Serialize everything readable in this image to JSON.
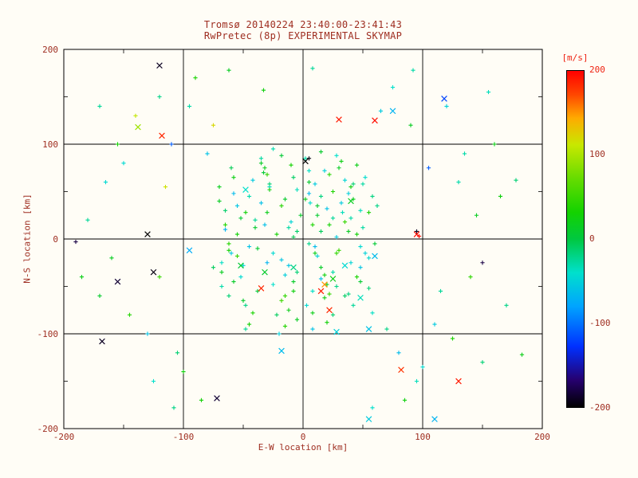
{
  "page": {
    "background": "#fffdf6",
    "text_color": "#9e2d20"
  },
  "title": {
    "line1": "Tromsø 20140224 23:40:00-23:41:43",
    "line2": "RwPretec (8p) EXPERIMENTAL SKYMAP"
  },
  "axes": {
    "xlabel": "E-W location [km]",
    "ylabel": "N-S location [km]",
    "xlim": [
      -200,
      200
    ],
    "ylim": [
      -200,
      200
    ],
    "xticks": [
      -200,
      -100,
      0,
      100,
      200
    ],
    "yticks": [
      -200,
      -100,
      0,
      100,
      200
    ],
    "grid_values": [
      -100,
      0,
      100
    ],
    "minor_ticks": [
      -150,
      -50,
      50,
      150
    ]
  },
  "colorbar": {
    "label": "[m/s]",
    "ticks": [
      200,
      100,
      0,
      -100,
      -200
    ],
    "max": 200,
    "min": -200,
    "top_tick_color": "#ee2211"
  },
  "chart_data": {
    "type": "scatter",
    "title": "Tromsø 20140224 23:40:00-23:41:43 / RwPretec (8p) EXPERIMENTAL SKYMAP",
    "xlabel": "E-W location [km]",
    "ylabel": "N-S location [km]",
    "xlim": [
      -200,
      200
    ],
    "ylim": [
      -200,
      200
    ],
    "grid": true,
    "legend": "colorbar right, velocity [m/s] from -200 (black) to 200 (red)",
    "vmin": -200,
    "vmax": 200,
    "colormap": [
      [
        0.0,
        "#000000"
      ],
      [
        0.08,
        "#26006e"
      ],
      [
        0.18,
        "#0030ff"
      ],
      [
        0.3,
        "#00a4ff"
      ],
      [
        0.4,
        "#00e0cc"
      ],
      [
        0.5,
        "#00c840"
      ],
      [
        0.58,
        "#14d200"
      ],
      [
        0.68,
        "#66dc00"
      ],
      [
        0.78,
        "#c8e800"
      ],
      [
        0.86,
        "#ffaa00"
      ],
      [
        0.93,
        "#ff4600"
      ],
      [
        1.0,
        "#ff0000"
      ]
    ],
    "point_format": [
      "x_km",
      "y_km",
      "velocity_mps",
      "marker(p=plus,x=cross)"
    ],
    "points": [
      [
        -8,
        2,
        -5,
        "p"
      ],
      [
        15,
        -30,
        12,
        "p"
      ],
      [
        -25,
        -48,
        -40,
        "p"
      ],
      [
        5,
        60,
        8,
        "p"
      ],
      [
        -40,
        20,
        -25,
        "p"
      ],
      [
        22,
        15,
        30,
        "p"
      ],
      [
        -60,
        -15,
        -55,
        "p"
      ],
      [
        35,
        -60,
        -10,
        "p"
      ],
      [
        -12,
        -75,
        20,
        "p"
      ],
      [
        48,
        30,
        -35,
        "p"
      ],
      [
        -70,
        40,
        15,
        "p"
      ],
      [
        8,
        -95,
        -60,
        "p"
      ],
      [
        -33,
        70,
        5,
        "p"
      ],
      [
        55,
        -20,
        -45,
        "p"
      ],
      [
        -18,
        35,
        40,
        "p"
      ],
      [
        28,
        -50,
        -20,
        "p"
      ],
      [
        -50,
        -65,
        10,
        "p"
      ],
      [
        2,
        85,
        -30,
        "p"
      ],
      [
        -65,
        10,
        -70,
        "p"
      ],
      [
        40,
        55,
        25,
        "p"
      ],
      [
        -5,
        -35,
        -15,
        "p"
      ],
      [
        18,
        72,
        -50,
        "p"
      ],
      [
        -45,
        -90,
        30,
        "p"
      ],
      [
        60,
        -5,
        5,
        "p"
      ],
      [
        -28,
        55,
        -40,
        "p"
      ],
      [
        10,
        -15,
        18,
        "p"
      ],
      [
        -75,
        -30,
        -8,
        "p"
      ],
      [
        32,
        38,
        -55,
        "p"
      ],
      [
        -15,
        -60,
        45,
        "p"
      ],
      [
        50,
        12,
        -28,
        "p"
      ],
      [
        -38,
        -10,
        8,
        "p"
      ],
      [
        5,
        48,
        -65,
        "p"
      ],
      [
        -58,
        65,
        22,
        "p"
      ],
      [
        25,
        -80,
        -12,
        "p"
      ],
      [
        -10,
        18,
        -48,
        "p"
      ],
      [
        45,
        -40,
        35,
        "p"
      ],
      [
        -30,
        -25,
        -70,
        "p"
      ],
      [
        15,
        92,
        10,
        "p"
      ],
      [
        -68,
        -50,
        -30,
        "p"
      ],
      [
        38,
        8,
        15,
        "p"
      ],
      [
        -20,
        -100,
        -52,
        "p"
      ],
      [
        58,
        45,
        -18,
        "p"
      ],
      [
        -48,
        28,
        28,
        "p"
      ],
      [
        8,
        -55,
        -38,
        "p"
      ],
      [
        -35,
        80,
        12,
        "p"
      ],
      [
        20,
        32,
        -60,
        "p"
      ],
      [
        -62,
        -5,
        40,
        "p"
      ],
      [
        42,
        -70,
        -25,
        "p"
      ],
      [
        -8,
        65,
        -10,
        "p"
      ],
      [
        30,
        -12,
        50,
        "p"
      ],
      [
        -52,
        -40,
        -45,
        "p"
      ],
      [
        12,
        25,
        8,
        "p"
      ],
      [
        -25,
        95,
        -32,
        "p"
      ],
      [
        48,
        -30,
        -58,
        "p"
      ],
      [
        -70,
        55,
        18,
        "p"
      ],
      [
        5,
        -5,
        -22,
        "p"
      ],
      [
        -42,
        -78,
        35,
        "p"
      ],
      [
        35,
        62,
        -48,
        "p"
      ],
      [
        -15,
        42,
        10,
        "p"
      ],
      [
        55,
        -52,
        -15,
        "p"
      ],
      [
        -32,
        15,
        -62,
        "p"
      ],
      [
        18,
        -38,
        25,
        "p"
      ],
      [
        -60,
        75,
        -5,
        "p"
      ],
      [
        28,
        88,
        -40,
        "p"
      ],
      [
        -5,
        -85,
        15,
        "p"
      ],
      [
        40,
        22,
        -30,
        "p"
      ],
      [
        -55,
        -18,
        48,
        "p"
      ],
      [
        10,
        58,
        -55,
        "p"
      ],
      [
        -38,
        -55,
        5,
        "p"
      ],
      [
        62,
        35,
        -20,
        "p"
      ],
      [
        -22,
        5,
        30,
        "p"
      ],
      [
        3,
        -70,
        -45,
        "p"
      ],
      [
        -65,
        30,
        -12,
        "p"
      ],
      [
        45,
        78,
        20,
        "p"
      ],
      [
        -12,
        -28,
        -58,
        "p"
      ],
      [
        25,
        50,
        38,
        "p"
      ],
      [
        -48,
        -95,
        -25,
        "p"
      ],
      [
        15,
        8,
        -8,
        "p"
      ],
      [
        -30,
        68,
        45,
        "p"
      ],
      [
        52,
        -15,
        -50,
        "p"
      ],
      [
        -8,
        -45,
        12,
        "p"
      ],
      [
        33,
        28,
        -35,
        "p"
      ],
      [
        -58,
        48,
        -65,
        "p"
      ],
      [
        20,
        -88,
        28,
        "p"
      ],
      [
        -40,
        12,
        8,
        "p"
      ],
      [
        6,
        38,
        -42,
        "p"
      ],
      [
        -18,
        -65,
        52,
        "p"
      ],
      [
        50,
        58,
        -28,
        "p"
      ],
      [
        -68,
        -35,
        15,
        "p"
      ],
      [
        28,
        2,
        -55,
        "p"
      ],
      [
        -10,
        78,
        32,
        "p"
      ],
      [
        38,
        -58,
        -18,
        "p"
      ],
      [
        -52,
        22,
        5,
        "p"
      ],
      [
        12,
        -18,
        -48,
        "p"
      ],
      [
        -28,
        52,
        25,
        "p"
      ],
      [
        58,
        -78,
        -38,
        "p"
      ],
      [
        -2,
        25,
        10,
        "p"
      ],
      [
        -45,
        -8,
        -60,
        "p"
      ],
      [
        22,
        68,
        42,
        "p"
      ],
      [
        -62,
        -60,
        -15,
        "p"
      ],
      [
        42,
        42,
        18,
        "p"
      ],
      [
        -15,
        -38,
        -52,
        "p"
      ],
      [
        8,
        15,
        35,
        "p"
      ],
      [
        -35,
        85,
        -28,
        "p"
      ],
      [
        48,
        -45,
        8,
        "p"
      ],
      [
        -25,
        -15,
        -45,
        "p"
      ],
      [
        30,
        75,
        15,
        "p"
      ],
      [
        -55,
        35,
        -58,
        "p"
      ],
      [
        18,
        -62,
        22,
        "p"
      ],
      [
        -5,
        52,
        -35,
        "p"
      ],
      [
        35,
        18,
        48,
        "p"
      ],
      [
        -48,
        -70,
        -20,
        "p"
      ],
      [
        10,
        -8,
        -65,
        "p"
      ],
      [
        -30,
        28,
        18,
        "p"
      ],
      [
        52,
        65,
        -42,
        "p"
      ],
      [
        -18,
        88,
        5,
        "p"
      ],
      [
        25,
        -35,
        -30,
        "p"
      ],
      [
        -65,
        15,
        38,
        "p"
      ],
      [
        40,
        -25,
        -48,
        "p"
      ],
      [
        -8,
        -55,
        25,
        "p"
      ],
      [
        15,
        45,
        -18,
        "p"
      ],
      [
        -42,
        62,
        -55,
        "p"
      ],
      [
        28,
        -15,
        45,
        "p"
      ],
      [
        -58,
        -45,
        12,
        "p"
      ],
      [
        5,
        72,
        -38,
        "p"
      ],
      [
        -22,
        -80,
        -8,
        "p"
      ],
      [
        45,
        5,
        28,
        "p"
      ],
      [
        -35,
        38,
        -62,
        "p"
      ],
      [
        20,
        -48,
        15,
        "p"
      ],
      [
        -12,
        12,
        -28,
        "p"
      ],
      [
        55,
        28,
        35,
        "p"
      ],
      [
        -50,
        -28,
        -48,
        "p"
      ],
      [
        8,
        -78,
        20,
        "p"
      ],
      [
        -28,
        58,
        -15,
        "p"
      ],
      [
        38,
        48,
        -52,
        "p"
      ],
      [
        -62,
        -12,
        30,
        "p"
      ],
      [
        12,
        35,
        8,
        "p"
      ],
      [
        -18,
        -22,
        -58,
        "p"
      ],
      [
        32,
        82,
        22,
        "p"
      ],
      [
        -45,
        45,
        -32,
        "p"
      ],
      [
        22,
        -58,
        48,
        "p"
      ],
      [
        -5,
        8,
        -12,
        "p"
      ],
      [
        48,
        -8,
        -45,
        "p"
      ],
      [
        -32,
        75,
        18,
        "p"
      ],
      [
        15,
        -42,
        -62,
        "p"
      ],
      [
        -55,
        5,
        28,
        "p"
      ],
      [
        25,
        22,
        -25,
        "p"
      ],
      [
        -15,
        -92,
        40,
        "p"
      ],
      [
        42,
        58,
        -15,
        "p"
      ],
      [
        -68,
        -25,
        -38,
        "p"
      ],
      [
        2,
        42,
        15,
        "p"
      ],
      [
        -120,
        150,
        -20,
        "p"
      ],
      [
        90,
        120,
        15,
        "p"
      ],
      [
        -150,
        80,
        -45,
        "p"
      ],
      [
        130,
        60,
        -30,
        "p"
      ],
      [
        -100,
        -140,
        25,
        "p"
      ],
      [
        110,
        -90,
        -55,
        "p"
      ],
      [
        -170,
        -60,
        10,
        "p"
      ],
      [
        150,
        -130,
        -15,
        "p"
      ],
      [
        -90,
        170,
        35,
        "p"
      ],
      [
        75,
        160,
        -40,
        "p"
      ],
      [
        -130,
        -100,
        -60,
        "p"
      ],
      [
        160,
        100,
        20,
        "p"
      ],
      [
        -180,
        20,
        -25,
        "p"
      ],
      [
        140,
        -40,
        45,
        "p"
      ],
      [
        -110,
        100,
        -110,
        "p"
      ],
      [
        95,
        -150,
        -35,
        "p"
      ],
      [
        -160,
        -20,
        15,
        "p"
      ],
      [
        120,
        140,
        -50,
        "p"
      ],
      [
        -85,
        -170,
        30,
        "p"
      ],
      [
        170,
        -70,
        -20,
        "p"
      ],
      [
        -140,
        130,
        110,
        "p"
      ],
      [
        80,
        -120,
        -65,
        "p"
      ],
      [
        -120,
        -40,
        50,
        "p"
      ],
      [
        105,
        75,
        -110,
        "p"
      ],
      [
        -95,
        140,
        -30,
        "p"
      ],
      [
        145,
        25,
        15,
        "p"
      ],
      [
        -165,
        60,
        -45,
        "p"
      ],
      [
        85,
        -170,
        25,
        "p"
      ],
      [
        -105,
        -120,
        -15,
        "p"
      ],
      [
        155,
        155,
        -35,
        "p"
      ],
      [
        -75,
        120,
        120,
        "p"
      ],
      [
        115,
        -55,
        -25,
        "p"
      ],
      [
        -145,
        -80,
        40,
        "p"
      ],
      [
        65,
        135,
        -55,
        "p"
      ],
      [
        -185,
        -40,
        20,
        "p"
      ],
      [
        135,
        90,
        -30,
        "p"
      ],
      [
        -115,
        55,
        115,
        "p"
      ],
      [
        100,
        -135,
        -45,
        "p"
      ],
      [
        -155,
        100,
        30,
        "p"
      ],
      [
        70,
        -95,
        -20,
        "p"
      ],
      [
        -125,
        -150,
        -40,
        "p"
      ],
      [
        165,
        45,
        25,
        "p"
      ],
      [
        -80,
        90,
        -60,
        "p"
      ],
      [
        125,
        -105,
        35,
        "p"
      ],
      [
        -170,
        140,
        -25,
        "p"
      ],
      [
        95,
        8,
        -190,
        "p"
      ],
      [
        150,
        -25,
        -180,
        "p"
      ],
      [
        -190,
        -3,
        -180,
        "p"
      ],
      [
        5,
        85,
        -195,
        "p"
      ],
      [
        178,
        62,
        -15,
        "p"
      ],
      [
        183,
        -122,
        20,
        "p"
      ],
      [
        -33,
        157,
        25,
        "p"
      ],
      [
        92,
        178,
        -30,
        "p"
      ],
      [
        8,
        180,
        -25,
        "p"
      ],
      [
        -62,
        178,
        15,
        "p"
      ],
      [
        58,
        -178,
        -40,
        "p"
      ],
      [
        -108,
        -178,
        -20,
        "p"
      ],
      [
        97,
        3,
        195,
        "p"
      ],
      [
        -120,
        183,
        -190,
        "x"
      ],
      [
        60,
        125,
        195,
        "x"
      ],
      [
        30,
        126,
        190,
        "x"
      ],
      [
        -118,
        109,
        185,
        "x"
      ],
      [
        15,
        -55,
        190,
        "x"
      ],
      [
        22,
        -75,
        185,
        "x"
      ],
      [
        95,
        5,
        195,
        "x"
      ],
      [
        130,
        -150,
        190,
        "x"
      ],
      [
        82,
        -138,
        180,
        "x"
      ],
      [
        -130,
        5,
        -200,
        "x"
      ],
      [
        -155,
        -45,
        -185,
        "x"
      ],
      [
        -125,
        -35,
        -195,
        "x"
      ],
      [
        -168,
        -108,
        -190,
        "x"
      ],
      [
        -72,
        -168,
        -185,
        "x"
      ],
      [
        2,
        82,
        -200,
        "x"
      ],
      [
        75,
        135,
        -70,
        "x"
      ],
      [
        60,
        -18,
        -65,
        "x"
      ],
      [
        -95,
        -12,
        -75,
        "x"
      ],
      [
        55,
        -95,
        -60,
        "x"
      ],
      [
        110,
        -190,
        -70,
        "x"
      ],
      [
        55,
        -190,
        -55,
        "x"
      ],
      [
        -18,
        -118,
        -65,
        "x"
      ],
      [
        -32,
        -35,
        10,
        "x"
      ],
      [
        -52,
        -28,
        5,
        "x"
      ],
      [
        25,
        -42,
        20,
        "x"
      ],
      [
        40,
        40,
        15,
        "x"
      ],
      [
        -138,
        118,
        95,
        "x"
      ],
      [
        18,
        -48,
        150,
        "x"
      ],
      [
        -35,
        -52,
        185,
        "x"
      ],
      [
        118,
        148,
        -120,
        "x"
      ],
      [
        35,
        -28,
        -45,
        "x"
      ],
      [
        -8,
        -30,
        -20,
        "x"
      ],
      [
        48,
        -62,
        -35,
        "x"
      ],
      [
        28,
        -98,
        -50,
        "x"
      ],
      [
        -48,
        52,
        -40,
        "x"
      ]
    ]
  }
}
